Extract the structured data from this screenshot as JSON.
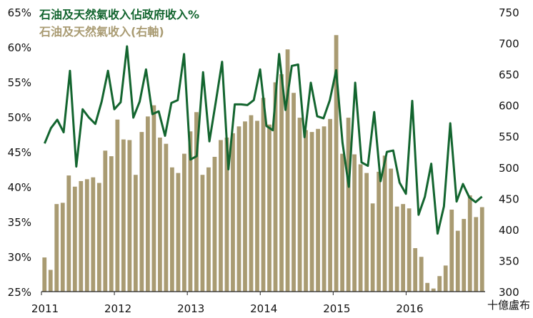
{
  "chart_data": {
    "type": "bar",
    "series": [
      {
        "name": "石油及天然氣收入佔政府收入%",
        "type": "line",
        "axis": "left",
        "color": "#13652F",
        "values": [
          46.2,
          48.4,
          49.6,
          47.8,
          56.6,
          42.9,
          51.1,
          49.9,
          49.0,
          52.2,
          56.6,
          51.1,
          52.1,
          60.1,
          49.9,
          52.2,
          56.8,
          50.4,
          50.8,
          47.3,
          52.0,
          52.4,
          59.0,
          43.9,
          44.4,
          56.4,
          46.5,
          52.1,
          57.9,
          42.5,
          51.8,
          51.8,
          51.7,
          52.4,
          56.8,
          48.7,
          48.1,
          59.0,
          51.0,
          57.3,
          57.5,
          47.1,
          54.9,
          50.1,
          49.8,
          52.4,
          56.7,
          46.3,
          40.0,
          54.9,
          43.5,
          43.0,
          50.7,
          40.8,
          45.0,
          45.2,
          40.6,
          39.0,
          52.3,
          36.0,
          38.6,
          43.3,
          33.3,
          37.2,
          49.1,
          37.9,
          40.4,
          38.5,
          37.8,
          38.6
        ]
      },
      {
        "name": "石油及天然氣收入(右軸)",
        "type": "bar",
        "axis": "right",
        "color": "#A99B72",
        "values": [
          355,
          335,
          441,
          443,
          487,
          469,
          478,
          481,
          484,
          475,
          527,
          518,
          577,
          545,
          544,
          488,
          557,
          582,
          600,
          548,
          538,
          500,
          491,
          522,
          558,
          589,
          488,
          500,
          517,
          544,
          548,
          555,
          566,
          574,
          584,
          575,
          612,
          569,
          637,
          650,
          690,
          620,
          580,
          560,
          557,
          562,
          566,
          578,
          713,
          522,
          580,
          521,
          505,
          491,
          442,
          493,
          519,
          498,
          437,
          441,
          434,
          370,
          356,
          314,
          305,
          325,
          342,
          432,
          398,
          417,
          455,
          420,
          436
        ]
      }
    ],
    "x_labels": [
      "2011",
      "2012",
      "2013",
      "2014",
      "2015",
      "2016"
    ],
    "left_axis": {
      "ticks": [
        "25%",
        "30%",
        "35%",
        "40%",
        "45%",
        "50%",
        "55%",
        "60%",
        "65%"
      ],
      "range": [
        25,
        65
      ]
    },
    "right_axis": {
      "ticks": [
        "300",
        "350",
        "400",
        "450",
        "500",
        "550",
        "600",
        "650",
        "700",
        "750"
      ],
      "range": [
        300,
        750
      ],
      "unit": "十億盧布"
    },
    "grid": false,
    "legend_position": "top-left"
  }
}
